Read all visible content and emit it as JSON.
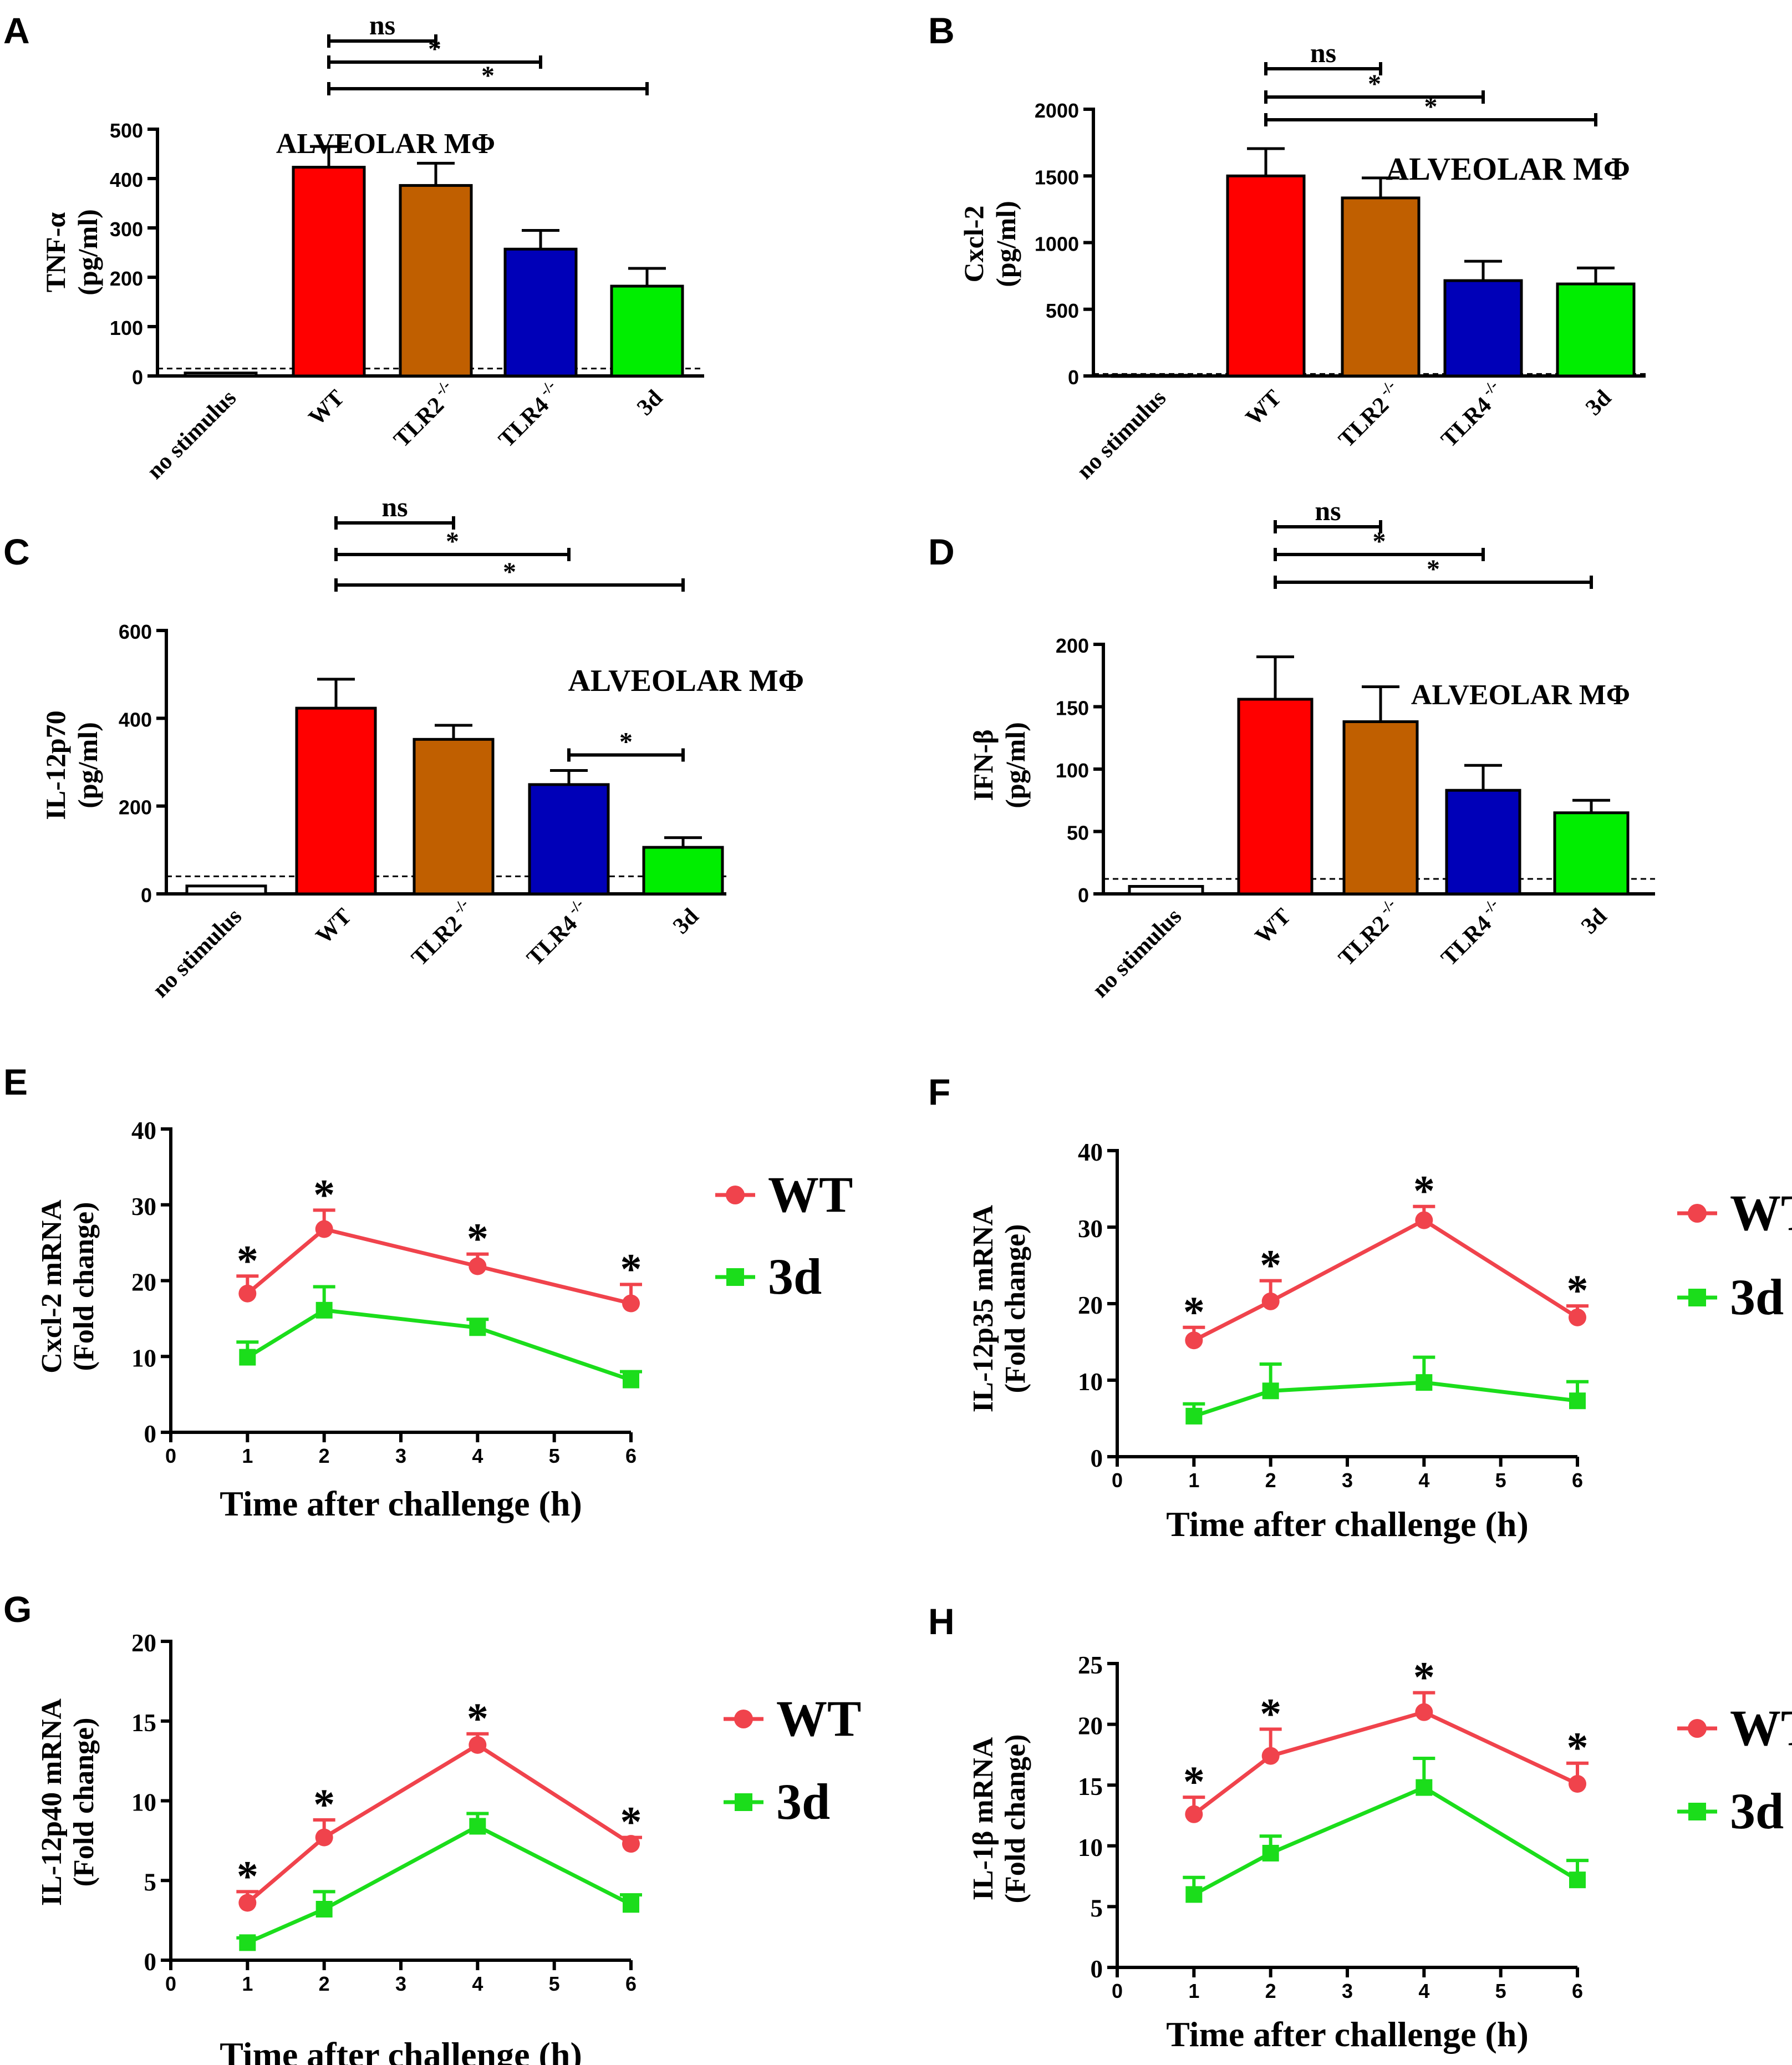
{
  "figure": {
    "bar_panels": [
      {
        "panel": "A",
        "chart_data": {
          "type": "bar",
          "title": "ALVEOLAR MΦ",
          "ylabel_line1": "TNF-α",
          "ylabel_line2": "(pg/ml)",
          "ylim": [
            0,
            500
          ],
          "yticks": [
            0,
            100,
            200,
            300,
            400,
            500
          ],
          "categories": [
            {
              "base": "no stimulus",
              "sup": ""
            },
            {
              "base": "WT",
              "sup": ""
            },
            {
              "base": "TLR2",
              "sup": "-/-"
            },
            {
              "base": "TLR4",
              "sup": "-/-"
            },
            {
              "base": "3d",
              "sup": ""
            }
          ],
          "values": [
            6,
            423,
            386,
            257,
            182
          ],
          "errors": [
            0,
            42,
            45,
            38,
            36
          ],
          "colors": [
            "#ffffff",
            "#ff0000",
            "#c05f00",
            "#0000b8",
            "#00ee00"
          ],
          "baseline": 15,
          "brackets": [
            {
              "from": 1,
              "to": 2,
              "label": "ns"
            },
            {
              "from": 1,
              "to": 3,
              "label": "*"
            },
            {
              "from": 1,
              "to": 4,
              "label": "*"
            }
          ]
        }
      },
      {
        "panel": "B",
        "chart_data": {
          "type": "bar",
          "title": "ALVEOLAR MΦ",
          "ylabel_line1": "Cxcl-2",
          "ylabel_line2": "(pg/ml)",
          "ylim": [
            0,
            2000
          ],
          "yticks": [
            0,
            500,
            1000,
            1500,
            2000
          ],
          "categories": [
            {
              "base": "no stimulus",
              "sup": ""
            },
            {
              "base": "WT",
              "sup": ""
            },
            {
              "base": "TLR2",
              "sup": "-/-"
            },
            {
              "base": "TLR4",
              "sup": "-/-"
            },
            {
              "base": "3d",
              "sup": ""
            }
          ],
          "values": [
            5,
            1500,
            1335,
            715,
            690
          ],
          "errors": [
            0,
            205,
            150,
            145,
            120
          ],
          "colors": [
            "#ffffff",
            "#ff0000",
            "#c05f00",
            "#0000b8",
            "#00ee00"
          ],
          "baseline": 15,
          "brackets": [
            {
              "from": 1,
              "to": 2,
              "label": "ns"
            },
            {
              "from": 1,
              "to": 3,
              "label": "*"
            },
            {
              "from": 1,
              "to": 4,
              "label": "*"
            }
          ]
        }
      },
      {
        "panel": "C",
        "chart_data": {
          "type": "bar",
          "title": "ALVEOLAR MΦ",
          "ylabel_line1": "IL-12p70",
          "ylabel_line2": "(pg/ml)",
          "ylim": [
            0,
            600
          ],
          "yticks": [
            0,
            200,
            400,
            600
          ],
          "categories": [
            {
              "base": "no stimulus",
              "sup": ""
            },
            {
              "base": "WT",
              "sup": ""
            },
            {
              "base": "TLR2",
              "sup": "-/-"
            },
            {
              "base": "TLR4",
              "sup": "-/-"
            },
            {
              "base": "3d",
              "sup": ""
            }
          ],
          "values": [
            18,
            423,
            352,
            249,
            106
          ],
          "errors": [
            0,
            66,
            32,
            32,
            22
          ],
          "colors": [
            "#ffffff",
            "#ff0000",
            "#c05f00",
            "#0000b8",
            "#00ee00"
          ],
          "baseline": 40,
          "brackets": [
            {
              "from": 1,
              "to": 2,
              "label": "ns"
            },
            {
              "from": 1,
              "to": 3,
              "label": "*"
            },
            {
              "from": 1,
              "to": 4,
              "label": "*"
            },
            {
              "from": 3,
              "to": 4,
              "label": "*"
            }
          ]
        }
      },
      {
        "panel": "D",
        "chart_data": {
          "type": "bar",
          "title": "ALVEOLAR MΦ",
          "ylabel_line1": "IFN-β",
          "ylabel_line2": "(pg/ml)",
          "ylim": [
            0,
            200
          ],
          "yticks": [
            0,
            50,
            100,
            150,
            200
          ],
          "categories": [
            {
              "base": "no stimulus",
              "sup": ""
            },
            {
              "base": "WT",
              "sup": ""
            },
            {
              "base": "TLR2",
              "sup": "-/-"
            },
            {
              "base": "TLR4",
              "sup": "-/-"
            },
            {
              "base": "3d",
              "sup": ""
            }
          ],
          "values": [
            6,
            156,
            138,
            83,
            65
          ],
          "errors": [
            0,
            34,
            28,
            20,
            10
          ],
          "colors": [
            "#ffffff",
            "#ff0000",
            "#c05f00",
            "#0000b8",
            "#00ee00"
          ],
          "baseline": 12,
          "brackets": [
            {
              "from": 1,
              "to": 2,
              "label": "ns"
            },
            {
              "from": 1,
              "to": 3,
              "label": "*"
            },
            {
              "from": 1,
              "to": 4,
              "label": "*"
            }
          ]
        }
      }
    ],
    "line_panels": [
      {
        "panel": "E",
        "chart_data": {
          "type": "line",
          "ylabel_line1": "Cxcl-2 mRNA",
          "ylabel_line2": "(Fold change)",
          "xlabel": "Time after challenge (h)",
          "xlim": [
            0,
            6
          ],
          "xticks": [
            0,
            1,
            2,
            3,
            4,
            5,
            6
          ],
          "ylim": [
            0,
            40
          ],
          "yticks": [
            0,
            10,
            20,
            30,
            40
          ],
          "x": [
            1,
            2,
            4,
            6
          ],
          "series": [
            {
              "name": "WT",
              "color": "#f0434c",
              "marker": "circle",
              "values": [
                18.3,
                26.8,
                21.9,
                17.0
              ],
              "errors": [
                2.3,
                2.5,
                1.6,
                2.5
              ],
              "sig": [
                "*",
                "*",
                "*",
                "*"
              ]
            },
            {
              "name": "3d",
              "color": "#1bdd1b",
              "marker": "square",
              "values": [
                9.9,
                16.1,
                13.8,
                6.9
              ],
              "errors": [
                2.0,
                3.1,
                1.1,
                1.1
              ],
              "sig": []
            }
          ]
        }
      },
      {
        "panel": "F",
        "chart_data": {
          "type": "line",
          "ylabel_line1": "IL-12p35 mRNA",
          "ylabel_line2": "(Fold change)",
          "xlabel": "Time after challenge (h)",
          "xlim": [
            0,
            6
          ],
          "xticks": [
            0,
            1,
            2,
            3,
            4,
            5,
            6
          ],
          "ylim": [
            0,
            40
          ],
          "yticks": [
            0,
            10,
            20,
            30,
            40
          ],
          "x": [
            1,
            2,
            4,
            6
          ],
          "series": [
            {
              "name": "WT",
              "color": "#f0434c",
              "marker": "circle",
              "values": [
                15.2,
                20.3,
                30.9,
                18.2
              ],
              "errors": [
                1.7,
                2.7,
                1.8,
                1.5
              ],
              "sig": [
                "*",
                "*",
                "*",
                "*"
              ]
            },
            {
              "name": "3d",
              "color": "#1bdd1b",
              "marker": "square",
              "values": [
                5.3,
                8.6,
                9.7,
                7.3
              ],
              "errors": [
                1.6,
                3.5,
                3.3,
                2.5
              ],
              "sig": []
            }
          ]
        }
      },
      {
        "panel": "G",
        "chart_data": {
          "type": "line",
          "ylabel_line1": "IL-12p40 mRNA",
          "ylabel_line2": "(Fold change)",
          "xlabel": "Time after challenge (h)",
          "xlim": [
            0,
            6
          ],
          "xticks": [
            0,
            1,
            2,
            3,
            4,
            5,
            6
          ],
          "ylim": [
            0,
            20
          ],
          "yticks": [
            0,
            5,
            10,
            15,
            20
          ],
          "x": [
            1,
            2,
            4,
            6
          ],
          "series": [
            {
              "name": "WT",
              "color": "#f0434c",
              "marker": "circle",
              "values": [
                3.6,
                7.7,
                13.5,
                7.3
              ],
              "errors": [
                0.7,
                1.1,
                0.7,
                0.4
              ],
              "sig": [
                "*",
                "*",
                "*",
                "*"
              ]
            },
            {
              "name": "3d",
              "color": "#1bdd1b",
              "marker": "square",
              "values": [
                1.1,
                3.2,
                8.4,
                3.5
              ],
              "errors": [
                0.3,
                1.1,
                0.8,
                0.6
              ],
              "sig": []
            }
          ]
        }
      },
      {
        "panel": "H",
        "chart_data": {
          "type": "line",
          "ylabel_line1": "IL-1β mRNA",
          "ylabel_line2": "(Fold change)",
          "xlabel": "Time after challenge (h)",
          "xlim": [
            0,
            6
          ],
          "xticks": [
            0,
            1,
            2,
            3,
            4,
            5,
            6
          ],
          "ylim": [
            0,
            25
          ],
          "yticks": [
            0,
            5,
            10,
            15,
            20,
            25
          ],
          "x": [
            1,
            2,
            4,
            6
          ],
          "series": [
            {
              "name": "WT",
              "color": "#f0434c",
              "marker": "circle",
              "values": [
                12.6,
                17.4,
                21.0,
                15.1
              ],
              "errors": [
                1.4,
                2.2,
                1.6,
                1.7
              ],
              "sig": [
                "*",
                "*",
                "*",
                "*"
              ]
            },
            {
              "name": "3d",
              "color": "#1bdd1b",
              "marker": "square",
              "values": [
                6.0,
                9.4,
                14.8,
                7.2
              ],
              "errors": [
                1.4,
                1.4,
                2.4,
                1.6
              ],
              "sig": []
            }
          ]
        }
      }
    ]
  }
}
